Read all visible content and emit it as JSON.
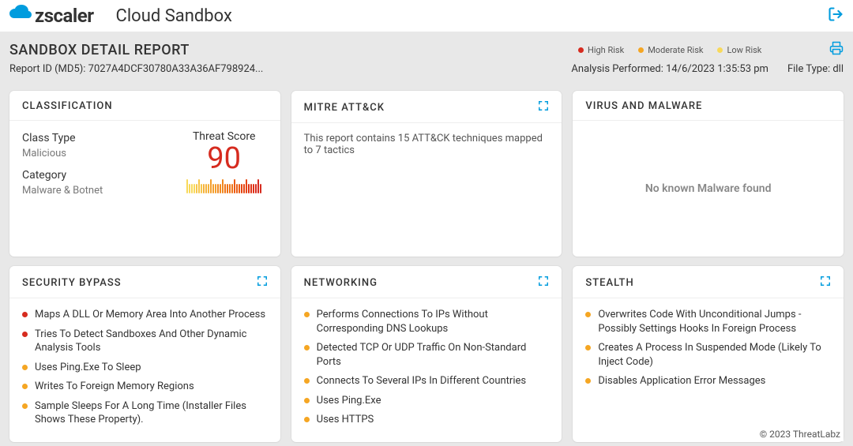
{
  "brand": {
    "mark": "zscaler"
  },
  "app_title": "Cloud Sandbox",
  "colors": {
    "brand": "#009cde",
    "high_risk": "#d62b1f",
    "moderate_risk": "#f5a623",
    "low_risk": "#f8d95b",
    "page_bg": "#e8e8e8",
    "card_bg": "#ffffff",
    "text": "#333333",
    "muted": "#777777"
  },
  "risk_legend": [
    {
      "label": "High Risk",
      "color": "#d62b1f"
    },
    {
      "label": "Moderate Risk",
      "color": "#f5a623"
    },
    {
      "label": "Low Risk",
      "color": "#f8d95b"
    }
  ],
  "report": {
    "title": "SANDBOX DETAIL REPORT",
    "id_label": "Report ID (MD5): 7027A4DCF30780A33A36AF798924...",
    "analysis_label": "Analysis Performed: 14/6/2023 1:35:53 pm",
    "file_type_label": "File Type: dll"
  },
  "classification": {
    "header": "CLASSIFICATION",
    "class_type_label": "Class Type",
    "class_type_value": "Malicious",
    "category_label": "Category",
    "category_value": "Malware & Botnet",
    "threat_score_label": "Threat Score",
    "threat_score_value": "90",
    "score_bar": {
      "ticks": 32,
      "short_height": 12,
      "tall_height": 18,
      "tall_every": 5,
      "gradient": [
        "#f8d95b",
        "#f7c64a",
        "#f5b23a",
        "#f49e2b",
        "#f2891e",
        "#ef7316",
        "#eb5b12",
        "#e64411",
        "#df3013",
        "#d62b1f"
      ]
    }
  },
  "mitre": {
    "header": "MITRE ATT&CK",
    "text": "This report contains 15 ATT&CK techniques mapped to 7 tactics"
  },
  "virus": {
    "header": "VIRUS AND MALWARE",
    "text": "No known Malware found"
  },
  "security_bypass": {
    "header": "SECURITY BYPASS",
    "items": [
      {
        "text": "Maps A DLL Or Memory Area Into Another Process",
        "risk": "high"
      },
      {
        "text": "Tries To Detect Sandboxes And Other Dynamic Analysis Tools",
        "risk": "high"
      },
      {
        "text": "Uses Ping.Exe To Sleep",
        "risk": "moderate"
      },
      {
        "text": "Writes To Foreign Memory Regions",
        "risk": "moderate"
      },
      {
        "text": "Sample Sleeps For A Long Time (Installer Files Shows These Property).",
        "risk": "moderate"
      }
    ]
  },
  "networking": {
    "header": "NETWORKING",
    "items": [
      {
        "text": "Performs Connections To IPs Without Corresponding DNS Lookups",
        "risk": "moderate"
      },
      {
        "text": "Detected TCP Or UDP Traffic On Non-Standard Ports",
        "risk": "moderate"
      },
      {
        "text": "Connects To Several IPs In Different Countries",
        "risk": "moderate"
      },
      {
        "text": "Uses Ping.Exe",
        "risk": "moderate"
      },
      {
        "text": "Uses HTTPS",
        "risk": "moderate"
      }
    ]
  },
  "stealth": {
    "header": "STEALTH",
    "items": [
      {
        "text": "Overwrites Code With Unconditional Jumps - Possibly Settings Hooks In Foreign Process",
        "risk": "moderate"
      },
      {
        "text": "Creates A Process In Suspended Mode (Likely To Inject Code)",
        "risk": "moderate"
      },
      {
        "text": "Disables Application Error Messages",
        "risk": "moderate"
      }
    ]
  },
  "footer": "© 2023 ThreatLabz"
}
